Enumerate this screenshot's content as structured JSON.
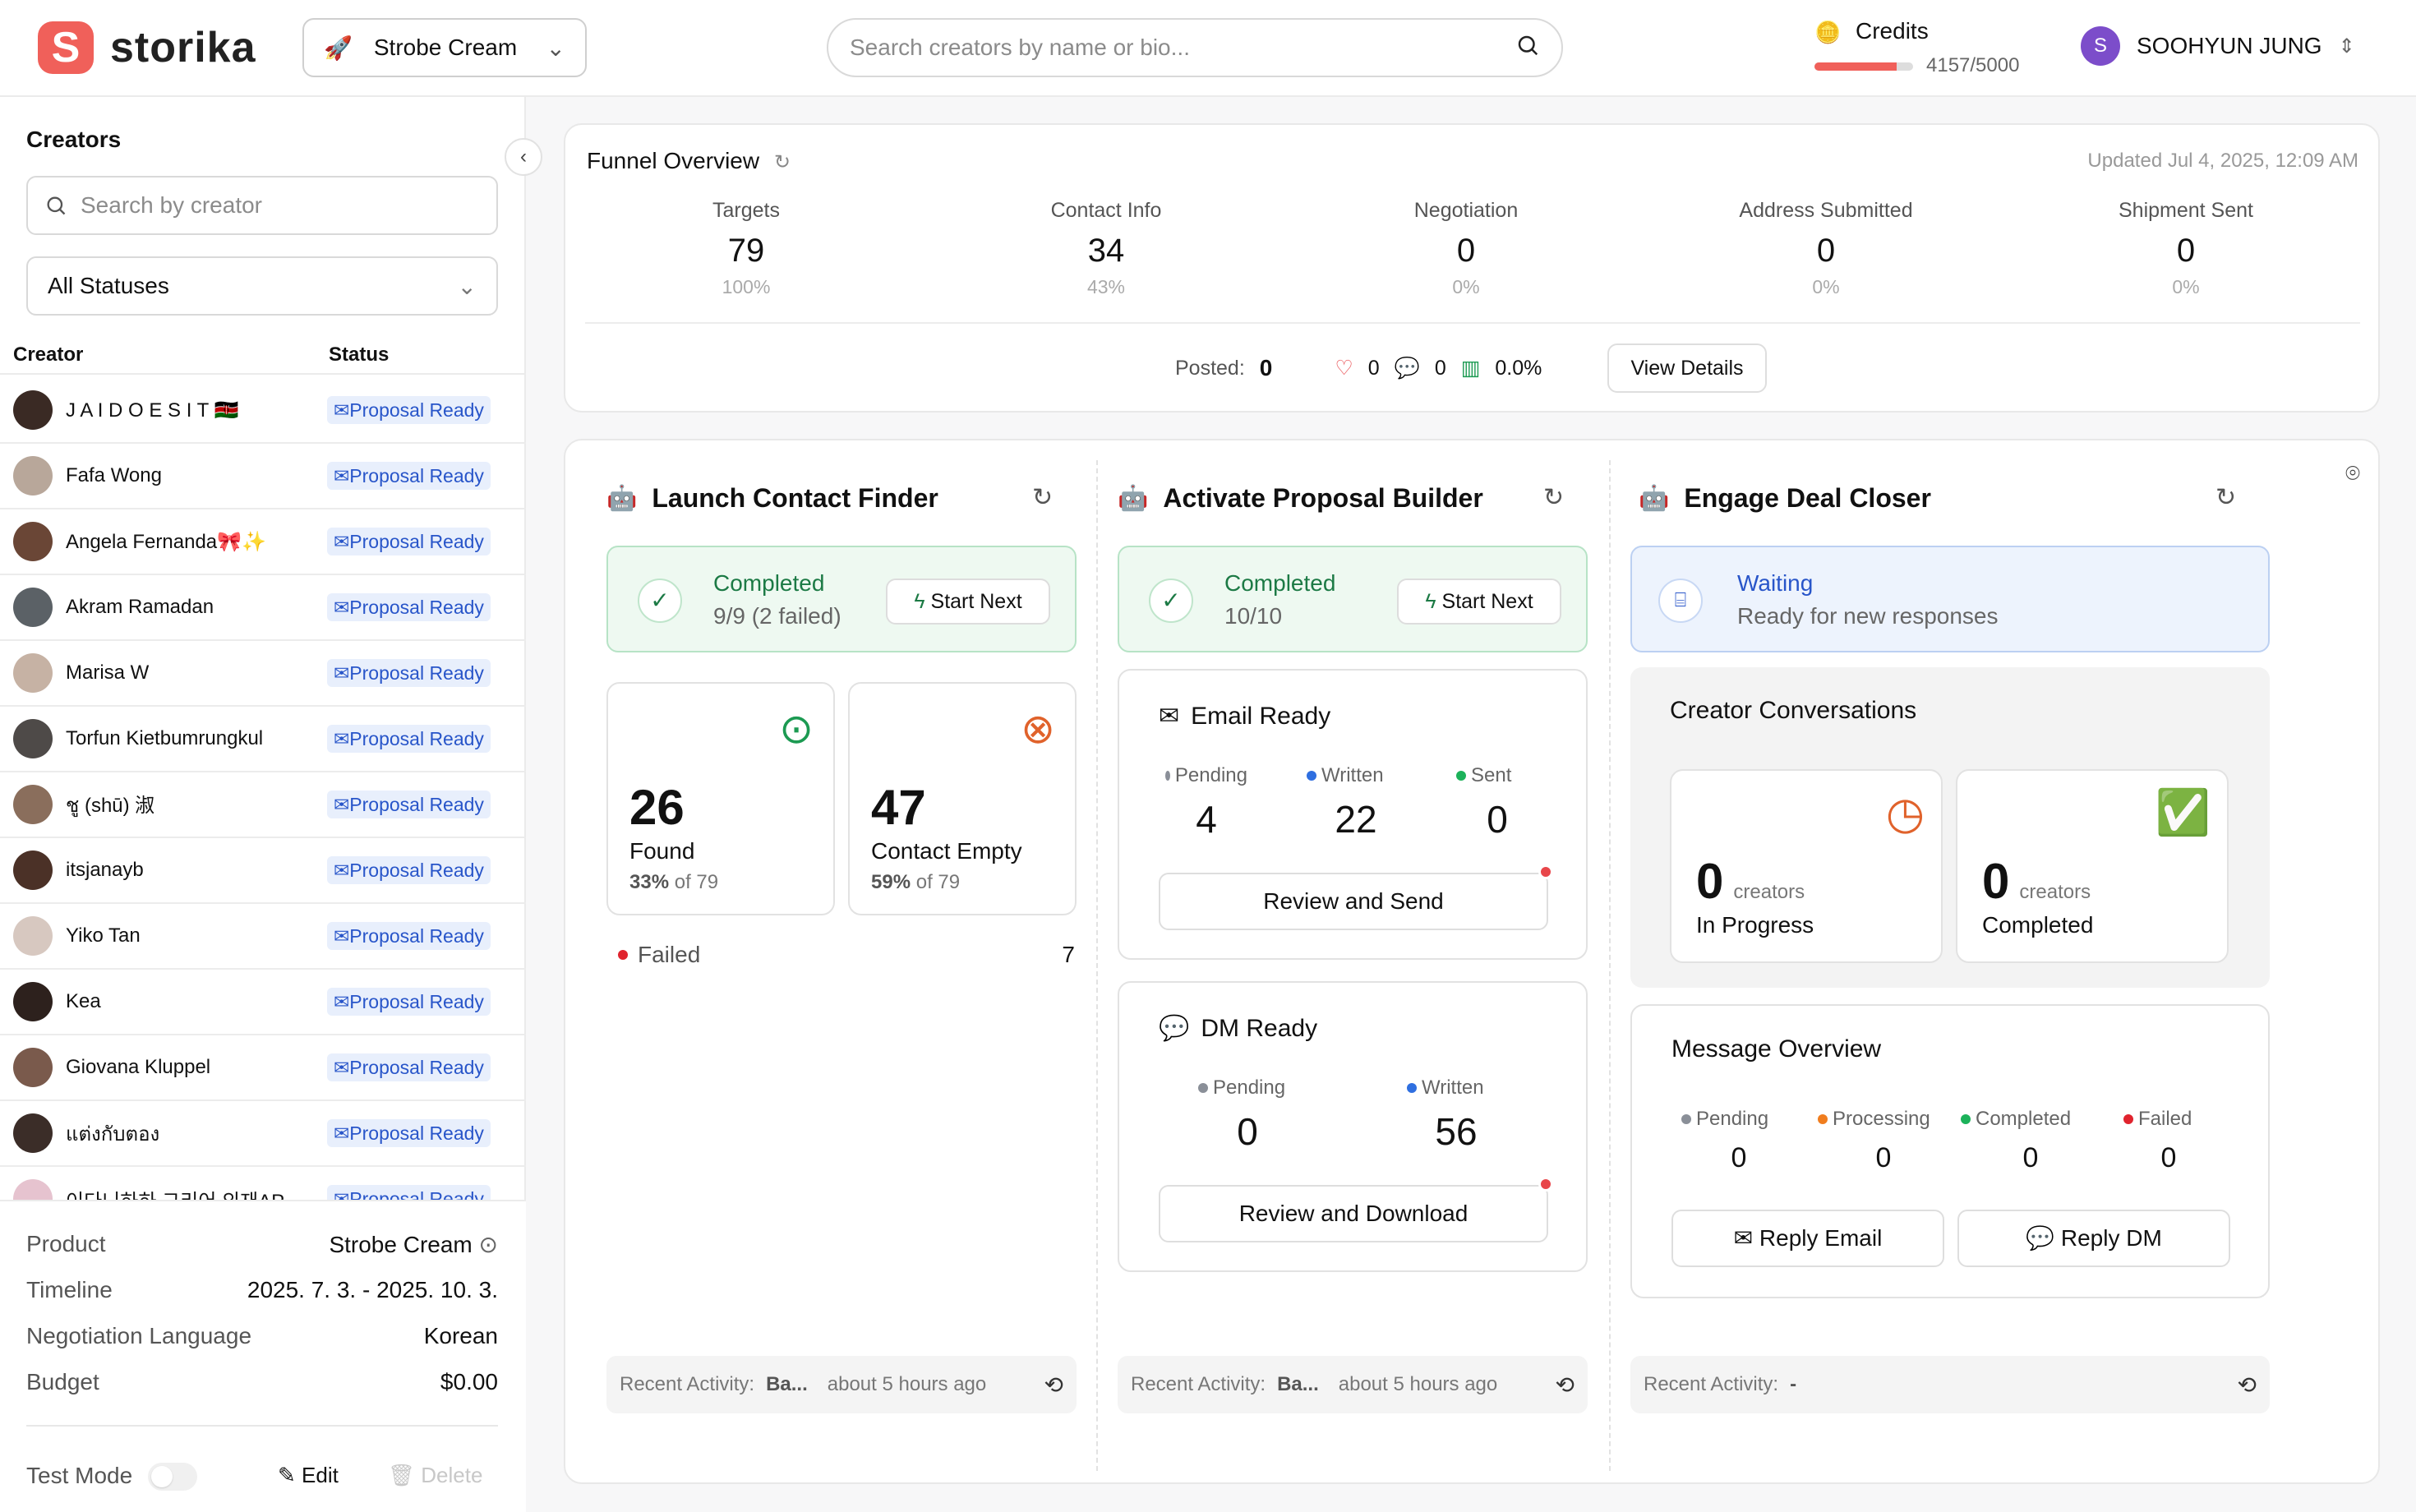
{
  "app": {
    "brand": "storika",
    "logo_letter": "S"
  },
  "topbar": {
    "product": "Strobe Cream",
    "search_placeholder": "Search creators by name or bio...",
    "credits_label": "Credits",
    "credits_value": "4157/5000",
    "credits_fraction": 0.83,
    "user_initial": "S",
    "user_name": "SOOHYUN JUNG"
  },
  "sidebar": {
    "title": "Creators",
    "search_placeholder": "Search by creator",
    "status_filter": "All Statuses",
    "col_creator": "Creator",
    "col_status": "Status",
    "creators": [
      {
        "name": "J A I D O E S I T 🇰🇪",
        "status": "Proposal Ready",
        "color": "#3a2a24"
      },
      {
        "name": "Fafa Wong",
        "status": "Proposal Ready",
        "color": "#b8a79a"
      },
      {
        "name": "Angela Fernanda🎀✨",
        "status": "Proposal Ready",
        "color": "#6a4636"
      },
      {
        "name": "Akram Ramadan",
        "status": "Proposal Ready",
        "color": "#5b6166"
      },
      {
        "name": "Marisa W",
        "status": "Proposal Ready",
        "color": "#c6b2a4"
      },
      {
        "name": "Torfun Kietbumrungkul",
        "status": "Proposal Ready",
        "color": "#4e4a48"
      },
      {
        "name": "ชู (shū) 淑",
        "status": "Proposal Ready",
        "color": "#8a6e5c"
      },
      {
        "name": "itsjanayb",
        "status": "Proposal Ready",
        "color": "#4b3127"
      },
      {
        "name": "Yiko Tan",
        "status": "Proposal Ready",
        "color": "#d7c8c0"
      },
      {
        "name": "Kea",
        "status": "Proposal Ready",
        "color": "#2d211d"
      },
      {
        "name": "Giovana Kluppel",
        "status": "Proposal Ready",
        "color": "#7a5a4c"
      },
      {
        "name": "แต่งกับตอง",
        "status": "Proposal Ready",
        "color": "#3b2d28"
      },
      {
        "name": "이다니하하 그리어 의재AP",
        "status": "Proposal Ready",
        "color": "#e6c3cf"
      }
    ],
    "details": {
      "product_label": "Product",
      "product_value": "Strobe Cream",
      "timeline_label": "Timeline",
      "timeline_value": "2025. 7. 3. - 2025. 10. 3.",
      "language_label": "Negotiation Language",
      "language_value": "Korean",
      "budget_label": "Budget",
      "budget_value": "$0.00"
    },
    "test_mode_label": "Test Mode",
    "edit_label": "Edit",
    "delete_label": "Delete"
  },
  "funnel": {
    "title": "Funnel Overview",
    "updated": "Updated Jul 4, 2025, 12:09 AM",
    "stages": [
      {
        "label": "Targets",
        "value": "79",
        "pct": "100%"
      },
      {
        "label": "Contact Info",
        "value": "34",
        "pct": "43%"
      },
      {
        "label": "Negotiation",
        "value": "0",
        "pct": "0%"
      },
      {
        "label": "Address Submitted",
        "value": "0",
        "pct": "0%"
      },
      {
        "label": "Shipment Sent",
        "value": "0",
        "pct": "0%"
      }
    ],
    "posted_label": "Posted:",
    "posted_value": "0",
    "likes": "0",
    "comments": "0",
    "engagement": "0.0%",
    "view_details": "View Details"
  },
  "contact_finder": {
    "title": "Launch Contact Finder",
    "status": "Completed",
    "status_sub": "9/9 (2 failed)",
    "start_next": "Start Next",
    "found_value": "26",
    "found_label": "Found",
    "found_pct": "33%",
    "found_of": "of 79",
    "empty_value": "47",
    "empty_label": "Contact Empty",
    "empty_pct": "59%",
    "empty_of": "of 79",
    "failed_label": "Failed",
    "failed_value": "7",
    "recent_label": "Recent Activity:",
    "recent_value": "Ba...",
    "recent_time": "about 5 hours ago"
  },
  "proposal_builder": {
    "title": "Activate Proposal Builder",
    "status": "Completed",
    "status_sub": "10/10",
    "start_next": "Start Next",
    "email": {
      "title": "Email Ready",
      "pending_label": "Pending",
      "pending": "4",
      "written_label": "Written",
      "written": "22",
      "sent_label": "Sent",
      "sent": "0",
      "button": "Review and Send"
    },
    "dm": {
      "title": "DM Ready",
      "pending_label": "Pending",
      "pending": "0",
      "written_label": "Written",
      "written": "56",
      "button": "Review and Download"
    },
    "recent_label": "Recent Activity:",
    "recent_value": "Ba...",
    "recent_time": "about 5 hours ago"
  },
  "deal_closer": {
    "title": "Engage Deal Closer",
    "status": "Waiting",
    "status_sub": "Ready for new responses",
    "conversations_title": "Creator Conversations",
    "in_progress_value": "0",
    "in_progress_unit": "creators",
    "in_progress_label": "In Progress",
    "completed_value": "0",
    "completed_unit": "creators",
    "completed_label": "Completed",
    "message_title": "Message Overview",
    "pending_label": "Pending",
    "pending": "0",
    "processing_label": "Processing",
    "processing": "0",
    "completed_label2": "Completed",
    "completed2": "0",
    "failed_label": "Failed",
    "failed": "0",
    "reply_email": "Reply Email",
    "reply_dm": "Reply DM",
    "recent_label": "Recent Activity:",
    "recent_value": "-"
  },
  "colors": {
    "brand": "#f0605a",
    "green": "#1c7a45",
    "blue": "#2855c9",
    "orange": "#e0622b",
    "red": "#e8464a"
  }
}
